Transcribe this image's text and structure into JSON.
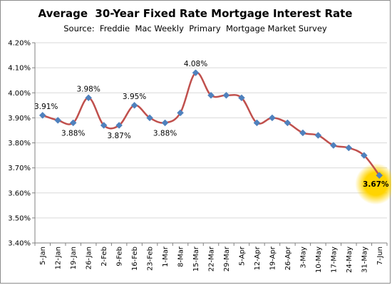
{
  "chart": {
    "title": "Average  30-Year Fixed Rate Mortgage Interest Rate",
    "subtitle": "Source:  Freddie  Mac Weekly  Primary  Mortgage Market Survey"
  },
  "chart_data": {
    "type": "line",
    "title": "Average  30-Year Fixed Rate Mortgage Interest Rate",
    "subtitle": "Source:  Freddie  Mac Weekly  Primary  Mortgage Market Survey",
    "xlabel": "",
    "ylabel": "",
    "categories": [
      "5-Jan",
      "12-Jan",
      "19-Jan",
      "26-Jan",
      "2-Feb",
      "9-Feb",
      "16-Feb",
      "23-Feb",
      "1-Mar",
      "8-Mar",
      "15-Mar",
      "22-Mar",
      "29-Mar",
      "5-Apr",
      "12-Apr",
      "19-Apr",
      "26-Apr",
      "3-May",
      "10-May",
      "17-May",
      "24-May",
      "31-May",
      "7-Jun"
    ],
    "values": [
      3.91,
      3.89,
      3.88,
      3.98,
      3.87,
      3.87,
      3.95,
      3.9,
      3.88,
      3.92,
      4.08,
      3.99,
      3.99,
      3.98,
      3.88,
      3.9,
      3.88,
      3.84,
      3.83,
      3.79,
      3.78,
      3.75,
      3.67
    ],
    "ylim": [
      3.4,
      4.2
    ],
    "yticks": [
      "3.40%",
      "3.50%",
      "3.60%",
      "3.70%",
      "3.80%",
      "3.90%",
      "4.00%",
      "4.10%",
      "4.20%"
    ],
    "ytick_values": [
      3.4,
      3.5,
      3.6,
      3.7,
      3.8,
      3.9,
      4.0,
      4.1,
      4.2
    ],
    "grid": true,
    "legend": "none",
    "data_labels": [
      {
        "index": 0,
        "text": "3.91%",
        "position": "above"
      },
      {
        "index": 2,
        "text": "3.88%",
        "position": "below"
      },
      {
        "index": 3,
        "text": "3.98%",
        "position": "above"
      },
      {
        "index": 5,
        "text": "3.87%",
        "position": "below"
      },
      {
        "index": 6,
        "text": "3.95%",
        "position": "above"
      },
      {
        "index": 8,
        "text": "3.88%",
        "position": "below"
      },
      {
        "index": 10,
        "text": "4.08%",
        "position": "above"
      },
      {
        "index": 22,
        "text": "3.67%",
        "position": "below",
        "highlight": true
      }
    ],
    "colors": {
      "line": "#c0504d",
      "marker": "#4f81bd",
      "grid": "#d9d9d9",
      "highlight": "#ffd400"
    }
  }
}
